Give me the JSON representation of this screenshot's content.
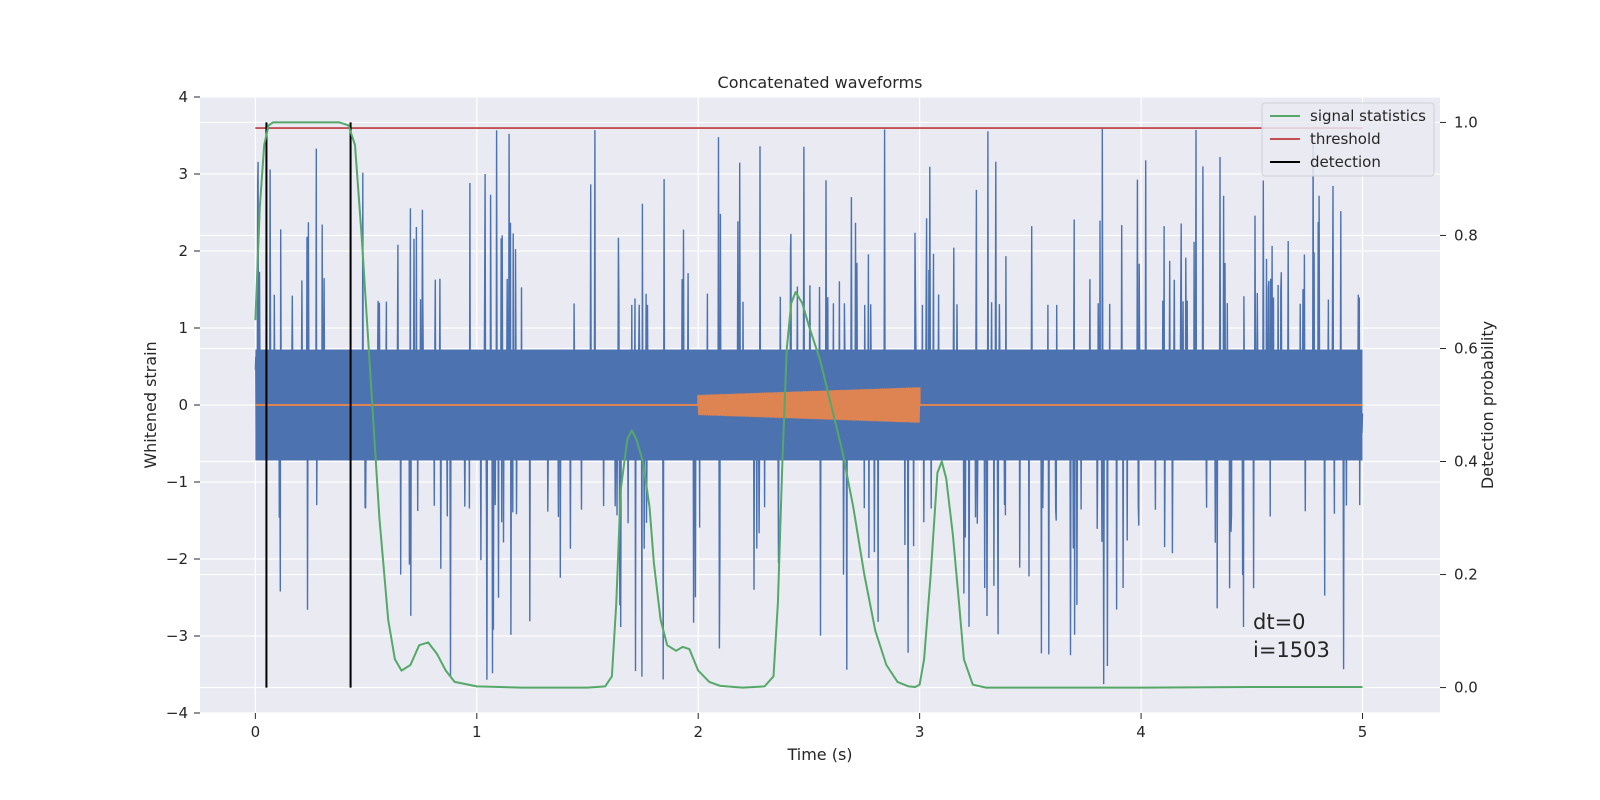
{
  "chart_data": {
    "type": "line",
    "title": "Concatenated waveforms",
    "xlabel": "Time (s)",
    "ylabel": "Whitened strain",
    "y2label": "Detection probability",
    "xlim": [
      -0.25,
      5.35
    ],
    "ylim": [
      -4,
      4
    ],
    "y2lim": [
      -0.045,
      1.045
    ],
    "xticks": [
      "0",
      "1",
      "2",
      "3",
      "4",
      "5"
    ],
    "yticks": [
      "4",
      "3",
      "2",
      "1",
      "0",
      "−1",
      "−2",
      "−3",
      "−4"
    ],
    "y2ticks": [
      "1.0",
      "0.8",
      "0.6",
      "0.4",
      "0.2",
      "0.0"
    ],
    "grid": true,
    "legend_position": "top-right",
    "colors": {
      "plot_background": "#eaeaf2",
      "grid": "#ffffff",
      "strain": "#4c72b0",
      "injection": "#dd8452",
      "signal_statistics": "#55a868",
      "threshold": "#c44e52",
      "detection": "#000000"
    },
    "series": [
      {
        "name": "",
        "axis": "left",
        "description_kind": "noise",
        "x_range": [
          0,
          5
        ],
        "core_amplitude": 0.72,
        "spike_range": [
          1.3,
          3.65
        ]
      },
      {
        "name": "",
        "axis": "left",
        "description_kind": "chirp",
        "x_range": [
          0,
          5
        ],
        "chirp_start": 2.0,
        "chirp_end": 3.0,
        "amplitude_start": 0.12,
        "amplitude_end": 0.22
      },
      {
        "name": "signal statistics",
        "axis": "right",
        "x": [
          0.0,
          0.02,
          0.04,
          0.06,
          0.08,
          0.1,
          0.15,
          0.2,
          0.3,
          0.38,
          0.42,
          0.45,
          0.48,
          0.52,
          0.56,
          0.6,
          0.63,
          0.66,
          0.7,
          0.74,
          0.78,
          0.82,
          0.86,
          0.9,
          1.0,
          1.2,
          1.4,
          1.5,
          1.58,
          1.61,
          1.63,
          1.65,
          1.68,
          1.7,
          1.72,
          1.75,
          1.78,
          1.8,
          1.83,
          1.86,
          1.9,
          1.93,
          1.96,
          2.0,
          2.05,
          2.1,
          2.2,
          2.3,
          2.34,
          2.36,
          2.38,
          2.4,
          2.42,
          2.44,
          2.47,
          2.5,
          2.55,
          2.6,
          2.65,
          2.7,
          2.75,
          2.8,
          2.85,
          2.9,
          2.95,
          2.98,
          3.0,
          3.02,
          3.05,
          3.08,
          3.1,
          3.12,
          3.15,
          3.18,
          3.2,
          3.24,
          3.3,
          3.5,
          4.0,
          4.5,
          5.0
        ],
        "y": [
          0.65,
          0.85,
          0.96,
          0.995,
          1.0,
          1.0,
          1.0,
          1.0,
          1.0,
          1.0,
          0.995,
          0.96,
          0.8,
          0.55,
          0.3,
          0.12,
          0.05,
          0.03,
          0.04,
          0.075,
          0.08,
          0.06,
          0.03,
          0.01,
          0.002,
          0.0,
          0.0,
          0.0,
          0.002,
          0.02,
          0.15,
          0.35,
          0.44,
          0.455,
          0.44,
          0.4,
          0.32,
          0.22,
          0.12,
          0.075,
          0.065,
          0.072,
          0.068,
          0.03,
          0.01,
          0.003,
          0.0,
          0.002,
          0.02,
          0.15,
          0.4,
          0.6,
          0.68,
          0.7,
          0.68,
          0.64,
          0.58,
          0.5,
          0.42,
          0.32,
          0.2,
          0.1,
          0.04,
          0.01,
          0.002,
          0.001,
          0.005,
          0.05,
          0.2,
          0.38,
          0.4,
          0.37,
          0.27,
          0.14,
          0.05,
          0.005,
          0.0,
          0.0,
          0.0,
          0.001,
          0.001
        ]
      },
      {
        "name": "threshold",
        "axis": "right",
        "x": [
          0,
          5
        ],
        "y": [
          0.99,
          0.99
        ]
      },
      {
        "name": "detection",
        "axis": "right",
        "x": [
          0.05,
          0.43
        ],
        "y_range": [
          0,
          1
        ]
      }
    ],
    "annotations": [
      "dt=0",
      "i=1503"
    ]
  }
}
